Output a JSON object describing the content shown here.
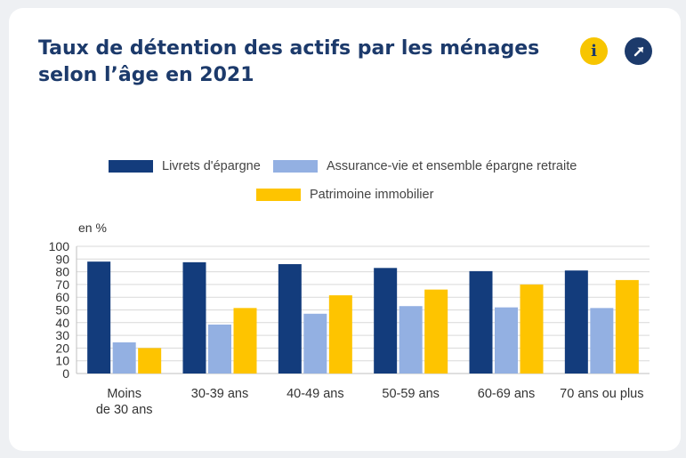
{
  "page": {
    "title": "Taux de détention des actifs par les ménages selon l’âge en 2021",
    "info_icon": "info-icon",
    "share_icon": "arrow-up-right-icon",
    "info_label": "i"
  },
  "colors": {
    "title": "#1c3a6b",
    "livrets": "#133c7c",
    "assurance": "#93b0e2",
    "patrimoine": "#fec400",
    "info_button": "#f7c500",
    "share_button": "#1c3a6b"
  },
  "chart_data": {
    "type": "bar",
    "unit_label": "en %",
    "ylim": [
      0,
      100
    ],
    "yticks": [
      0,
      10,
      20,
      30,
      40,
      50,
      60,
      70,
      80,
      90,
      100
    ],
    "grid": true,
    "legend_position": "top",
    "categories": [
      [
        "Moins",
        "de 30 ans"
      ],
      [
        "30-39 ans"
      ],
      [
        "40-49 ans"
      ],
      [
        "50-59 ans"
      ],
      [
        "60-69 ans"
      ],
      [
        "70 ans ou plus"
      ]
    ],
    "series": [
      {
        "name": "Livrets d'épargne",
        "color": "#133c7c",
        "values": [
          88,
          87.5,
          86,
          83,
          80.5,
          81
        ]
      },
      {
        "name": "Assurance-vie et ensemble épargne retraite",
        "color": "#93b0e2",
        "values": [
          24.5,
          38.5,
          47,
          53,
          52,
          51.5
        ]
      },
      {
        "name": "Patrimoine immobilier",
        "color": "#fec400",
        "values": [
          20,
          51.5,
          61.5,
          66,
          70,
          73.5
        ]
      }
    ]
  }
}
